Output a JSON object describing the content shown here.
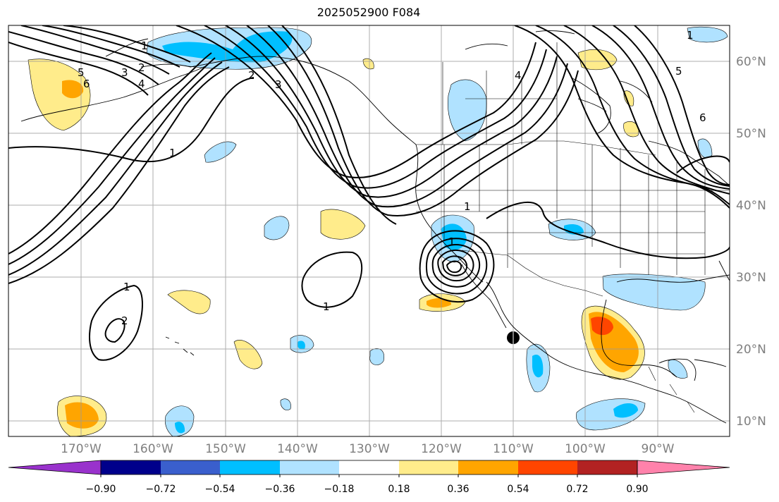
{
  "title": "2025052900 F084",
  "lat_labels": [
    "60°N",
    "50°N",
    "40°N",
    "30°N",
    "20°N",
    "10°N"
  ],
  "lon_labels": [
    "170°W",
    "160°W",
    "150°W",
    "140°W",
    "130°W",
    "120°W",
    "110°W",
    "100°W",
    "90°W"
  ],
  "colorbar": {
    "colors": [
      "#9932cc",
      "#00008b",
      "#3a5fcd",
      "#00bfff",
      "#b0e2ff",
      "#ffffff",
      "#ffec8b",
      "#ffa500",
      "#ff4500",
      "#b22222",
      "#ff82ab"
    ],
    "tick_labels": [
      "−0.90",
      "−0.72",
      "−0.54",
      "−0.36",
      "−0.18",
      "0.18",
      "0.36",
      "0.54",
      "0.72",
      "0.90"
    ]
  },
  "contour_labels": [
    "1",
    "2",
    "3",
    "4",
    "5",
    "6",
    "1",
    "1",
    "1",
    "2",
    "3",
    "4",
    "5",
    "6",
    "1",
    "1",
    "2",
    "1"
  ],
  "marker": "black circle marker"
}
